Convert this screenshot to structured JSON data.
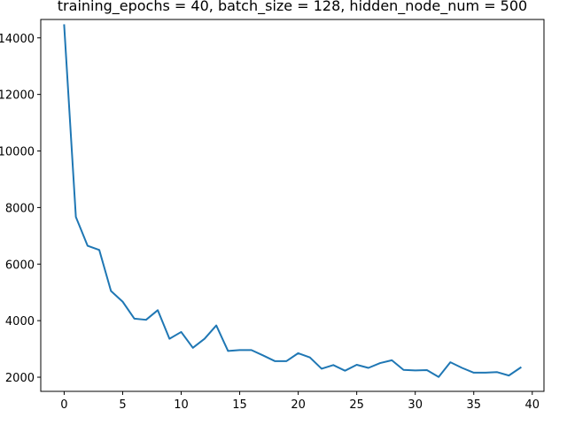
{
  "chart_data": {
    "type": "line",
    "title": "training_epochs = 40, batch_size = 128, hidden_node_num = 500",
    "xlabel": "",
    "ylabel": "",
    "xlim": [
      -2,
      41
    ],
    "ylim": [
      1500,
      14650
    ],
    "grid": false,
    "x_ticks": [
      0,
      5,
      10,
      15,
      20,
      25,
      30,
      35,
      40
    ],
    "y_ticks": [
      2000,
      4000,
      6000,
      8000,
      10000,
      12000,
      14000
    ],
    "x_tick_labels": [
      "0",
      "5",
      "10",
      "15",
      "20",
      "25",
      "30",
      "35",
      "40"
    ],
    "y_tick_labels": [
      "2000",
      "4000",
      "6000",
      "8000",
      "10000",
      "12000",
      "14000"
    ],
    "series": [
      {
        "color": "#1f77b4",
        "x": [
          0,
          1,
          2,
          3,
          4,
          5,
          6,
          7,
          8,
          9,
          10,
          11,
          12,
          13,
          14,
          15,
          16,
          17,
          18,
          19,
          20,
          21,
          22,
          23,
          24,
          25,
          26,
          27,
          28,
          29,
          30,
          31,
          32,
          33,
          34,
          35,
          36,
          37,
          38,
          39
        ],
        "values": [
          14450,
          7670,
          6650,
          6500,
          5050,
          4670,
          4070,
          4030,
          4370,
          3360,
          3600,
          3040,
          3360,
          3830,
          2930,
          2960,
          2960,
          2770,
          2570,
          2570,
          2850,
          2700,
          2300,
          2430,
          2230,
          2440,
          2330,
          2500,
          2600,
          2260,
          2240,
          2250,
          2010,
          2530,
          2330,
          2160,
          2160,
          2180,
          2060,
          2340
        ]
      }
    ]
  }
}
